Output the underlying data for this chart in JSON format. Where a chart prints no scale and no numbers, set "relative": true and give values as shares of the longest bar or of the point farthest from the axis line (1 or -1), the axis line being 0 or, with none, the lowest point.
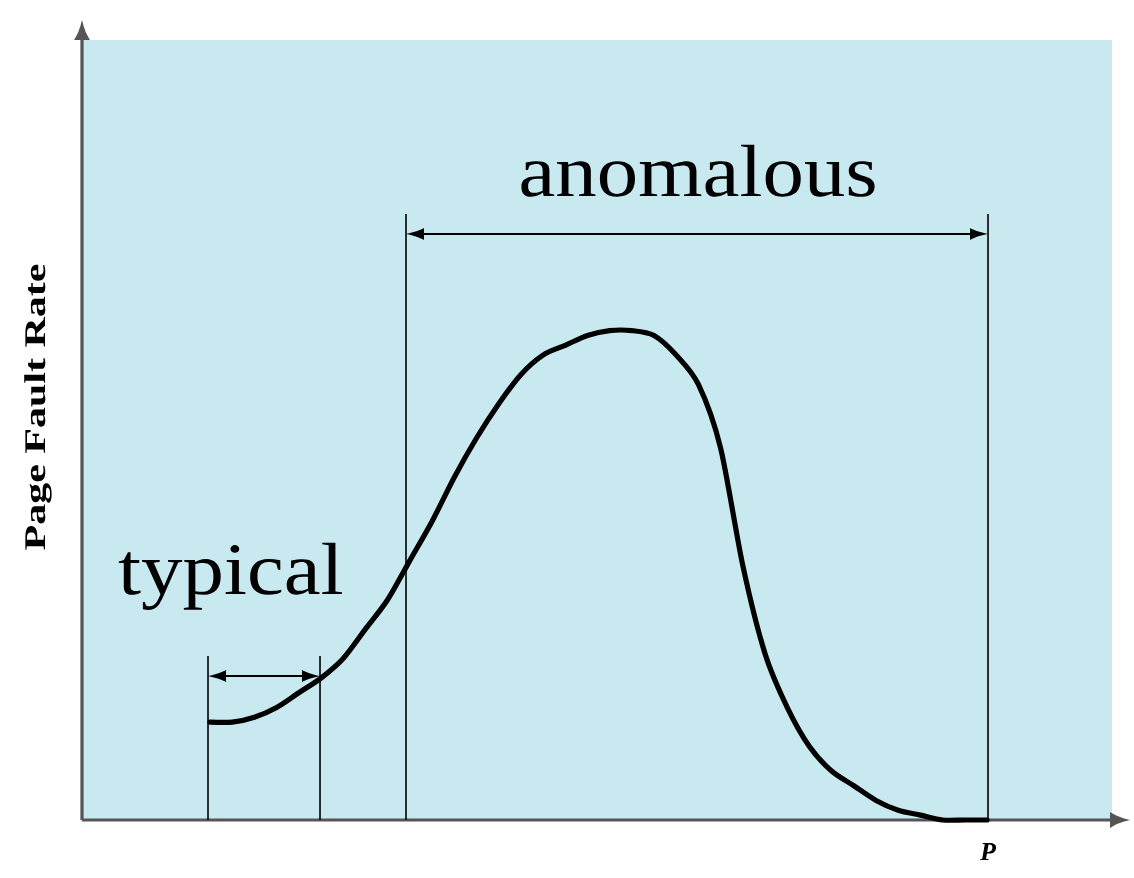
{
  "chart_data": {
    "type": "line",
    "relative": true,
    "ylabel": "Page Fault Rate",
    "xlabel": "P",
    "categories": [
      null,
      null,
      null,
      null,
      null,
      null,
      null,
      null,
      null,
      null,
      null,
      null,
      null,
      null,
      null,
      null,
      null,
      null,
      null,
      null,
      null,
      null,
      null,
      null,
      null,
      null,
      null,
      null,
      null,
      null,
      null,
      null,
      null,
      null,
      null,
      null
    ],
    "series": [
      {
        "color": "#000000",
        "values": [
          0.2,
          0.2,
          0.21,
          0.23,
          0.26,
          0.29,
          0.33,
          0.39,
          0.45,
          0.53,
          0.61,
          0.7,
          0.78,
          0.85,
          0.91,
          0.95,
          0.97,
          0.99,
          1.0,
          1.0,
          0.99,
          0.95,
          0.89,
          0.76,
          0.52,
          0.34,
          0.23,
          0.15,
          0.1,
          0.07,
          0.04,
          0.02,
          0.01,
          0,
          0,
          0
        ]
      }
    ],
    "annotations": [
      "typical",
      "anomalous"
    ]
  }
}
